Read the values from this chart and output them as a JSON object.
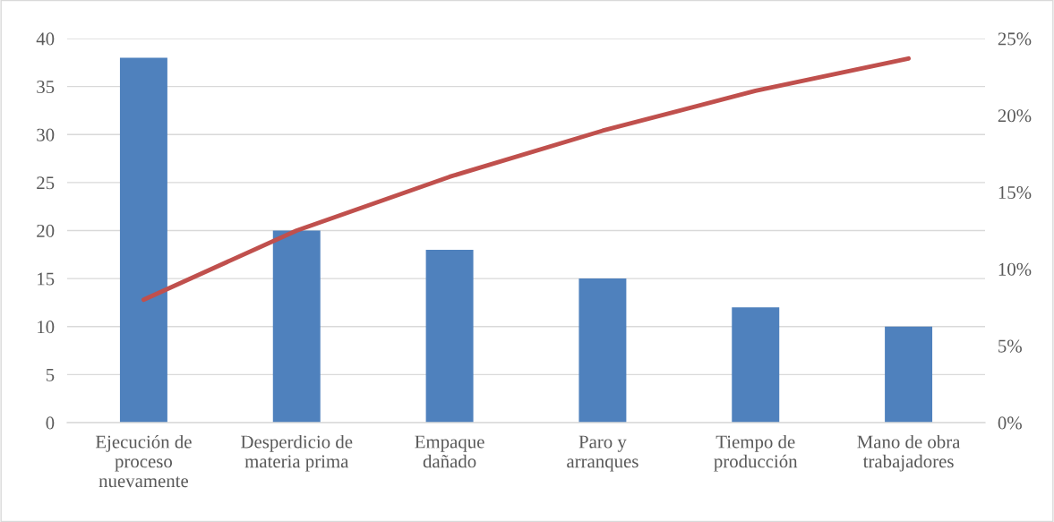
{
  "chart_data": {
    "type": "bar",
    "categories": [
      "Ejecución de\nproceso\nnuevamente",
      "Desperdicio de\nmateria prima",
      "Empaque\ndañado",
      "Paro y\narranques",
      "Tiempo de\nproducción",
      "Mano de obra\ntrabajadores"
    ],
    "series": [
      {
        "color": "#4f81bd",
        "values": [
          38,
          20,
          18,
          15,
          12,
          10
        ]
      },
      {
        "type": "line",
        "axis": "y2",
        "color": "#c0504d",
        "values": [
          8,
          12.5,
          16,
          19,
          21.6,
          23.7
        ]
      }
    ],
    "ylim": [
      0,
      40
    ],
    "yticks": [
      0,
      5,
      10,
      15,
      20,
      25,
      30,
      35,
      40
    ],
    "y2lim": [
      0,
      25
    ],
    "y2ticks": [
      {
        "value": 0,
        "label": "0%"
      },
      {
        "value": 5,
        "label": "5%"
      },
      {
        "value": 10,
        "label": "10%"
      },
      {
        "value": 15,
        "label": "15%"
      },
      {
        "value": 20,
        "label": "20%"
      },
      {
        "value": 25,
        "label": "25%"
      }
    ],
    "grid": "y",
    "legend": false,
    "marker": "none",
    "line_style": "solid"
  }
}
